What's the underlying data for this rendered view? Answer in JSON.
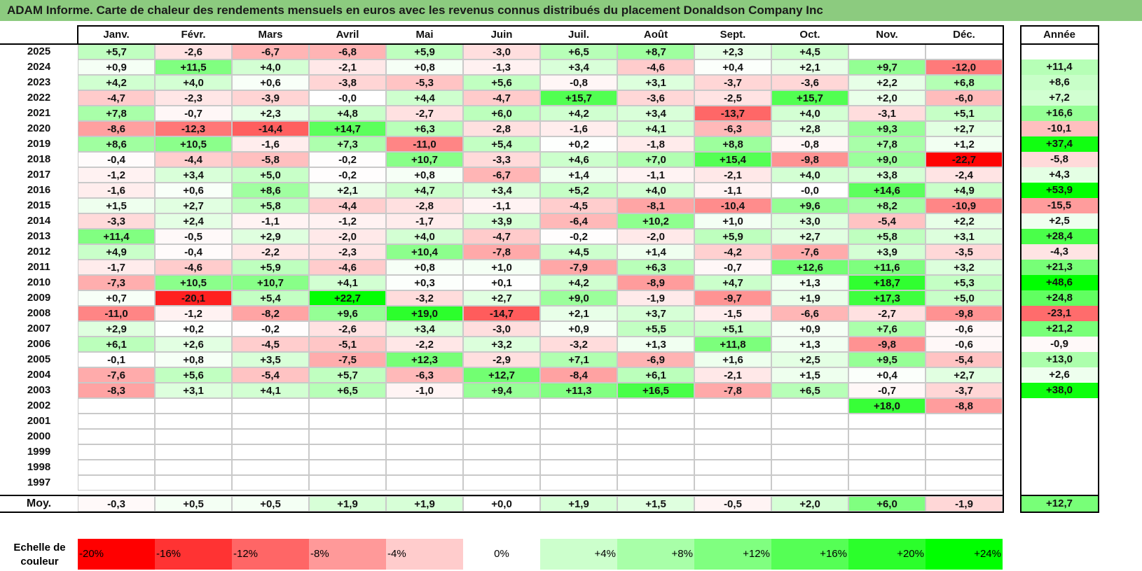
{
  "title": "ADAM Informe. Carte de chaleur des rendements mensuels en euros avec les revenus connus distribués du placement Donaldson Company Inc",
  "chart_data": {
    "type": "heatmap",
    "months": [
      "Janv.",
      "Févr.",
      "Mars",
      "Avril",
      "Mai",
      "Juin",
      "Juil.",
      "Août",
      "Sept.",
      "Oct.",
      "Nov.",
      "Déc."
    ],
    "year_header": "Année",
    "rows": [
      {
        "year": "2025",
        "values": [
          "+5,7",
          "-2,6",
          "-6,7",
          "-6,8",
          "+5,9",
          "-3,0",
          "+6,5",
          "+8,7",
          "+2,3",
          "+4,5",
          "",
          ""
        ],
        "annual": ""
      },
      {
        "year": "2024",
        "values": [
          "+0,9",
          "+11,5",
          "+4,0",
          "-2,1",
          "+0,8",
          "-1,3",
          "+3,4",
          "-4,6",
          "+0,4",
          "+2,1",
          "+9,7",
          "-12,0"
        ],
        "annual": "+11,4"
      },
      {
        "year": "2023",
        "values": [
          "+4,2",
          "+4,0",
          "+0,6",
          "-3,8",
          "-5,3",
          "+5,6",
          "-0,8",
          "+3,1",
          "-3,7",
          "-3,6",
          "+2,2",
          "+6,8"
        ],
        "annual": "+8,6"
      },
      {
        "year": "2022",
        "values": [
          "-4,7",
          "-2,3",
          "-3,9",
          "-0,0",
          "+4,4",
          "-4,7",
          "+15,7",
          "-3,6",
          "-2,5",
          "+15,7",
          "+2,0",
          "-6,0"
        ],
        "annual": "+7,2"
      },
      {
        "year": "2021",
        "values": [
          "+7,8",
          "-0,7",
          "+2,3",
          "+4,8",
          "-2,7",
          "+6,0",
          "+4,2",
          "+3,4",
          "-13,7",
          "+4,0",
          "-3,1",
          "+5,1"
        ],
        "annual": "+16,6"
      },
      {
        "year": "2020",
        "values": [
          "-8,6",
          "-12,3",
          "-14,4",
          "+14,7",
          "+6,3",
          "-2,8",
          "-1,6",
          "+4,1",
          "-6,3",
          "+2,8",
          "+9,3",
          "+2,7"
        ],
        "annual": "-10,1"
      },
      {
        "year": "2019",
        "values": [
          "+8,6",
          "+10,5",
          "-1,6",
          "+7,3",
          "-11,0",
          "+5,4",
          "+0,2",
          "-1,8",
          "+8,8",
          "-0,8",
          "+7,8",
          "+1,2"
        ],
        "annual": "+37,4"
      },
      {
        "year": "2018",
        "values": [
          "-0,4",
          "-4,4",
          "-5,8",
          "-0,2",
          "+10,7",
          "-3,3",
          "+4,6",
          "+7,0",
          "+15,4",
          "-9,8",
          "+9,0",
          "-22,7"
        ],
        "annual": "-5,8"
      },
      {
        "year": "2017",
        "values": [
          "-1,2",
          "+3,4",
          "+5,0",
          "-0,2",
          "+0,8",
          "-6,7",
          "+1,4",
          "-1,1",
          "-2,1",
          "+4,0",
          "+3,8",
          "-2,4"
        ],
        "annual": "+4,3"
      },
      {
        "year": "2016",
        "values": [
          "-1,6",
          "+0,6",
          "+8,6",
          "+2,1",
          "+4,7",
          "+3,4",
          "+5,2",
          "+4,0",
          "-1,1",
          "-0,0",
          "+14,6",
          "+4,9"
        ],
        "annual": "+53,9"
      },
      {
        "year": "2015",
        "values": [
          "+1,5",
          "+2,7",
          "+5,8",
          "-4,4",
          "-2,8",
          "-1,1",
          "-4,5",
          "-8,1",
          "-10,4",
          "+9,6",
          "+8,2",
          "-10,9"
        ],
        "annual": "-15,5"
      },
      {
        "year": "2014",
        "values": [
          "-3,3",
          "+2,4",
          "-1,1",
          "-1,2",
          "-1,7",
          "+3,9",
          "-6,4",
          "+10,2",
          "+1,0",
          "+3,0",
          "-5,4",
          "+2,2"
        ],
        "annual": "+2,5"
      },
      {
        "year": "2013",
        "values": [
          "+11,4",
          "-0,5",
          "+2,9",
          "-2,0",
          "+4,0",
          "-4,7",
          "-0,2",
          "-2,0",
          "+5,9",
          "+2,7",
          "+5,8",
          "+3,1"
        ],
        "annual": "+28,4"
      },
      {
        "year": "2012",
        "values": [
          "+4,9",
          "-0,4",
          "-2,2",
          "-2,3",
          "+10,4",
          "-7,8",
          "+4,5",
          "+1,4",
          "-4,2",
          "-7,6",
          "+3,9",
          "-3,5"
        ],
        "annual": "-4,3"
      },
      {
        "year": "2011",
        "values": [
          "-1,7",
          "-4,6",
          "+5,9",
          "-4,6",
          "+0,8",
          "+1,0",
          "-7,9",
          "+6,3",
          "-0,7",
          "+12,6",
          "+11,6",
          "+3,2"
        ],
        "annual": "+21,3"
      },
      {
        "year": "2010",
        "values": [
          "-7,3",
          "+10,5",
          "+10,7",
          "+4,1",
          "+0,3",
          "+0,1",
          "+4,2",
          "-8,9",
          "+4,7",
          "+1,3",
          "+18,7",
          "+5,3"
        ],
        "annual": "+48,6"
      },
      {
        "year": "2009",
        "values": [
          "+0,7",
          "-20,1",
          "+5,4",
          "+22,7",
          "-3,2",
          "+2,7",
          "+9,0",
          "-1,9",
          "-9,7",
          "+1,9",
          "+17,3",
          "+5,0"
        ],
        "annual": "+24,8"
      },
      {
        "year": "2008",
        "values": [
          "-11,0",
          "-1,2",
          "-8,2",
          "+9,6",
          "+19,0",
          "-14,7",
          "+2,1",
          "+3,7",
          "-1,5",
          "-6,6",
          "-2,7",
          "-9,8"
        ],
        "annual": "-23,1"
      },
      {
        "year": "2007",
        "values": [
          "+2,9",
          "+0,2",
          "-0,2",
          "-2,6",
          "+3,4",
          "-3,0",
          "+0,9",
          "+5,5",
          "+5,1",
          "+0,9",
          "+7,6",
          "-0,6"
        ],
        "annual": "+21,2"
      },
      {
        "year": "2006",
        "values": [
          "+6,1",
          "+2,6",
          "-4,5",
          "-5,1",
          "-2,2",
          "+3,2",
          "-3,2",
          "+1,3",
          "+11,8",
          "+1,3",
          "-9,8",
          "-0,6"
        ],
        "annual": "-0,9"
      },
      {
        "year": "2005",
        "values": [
          "-0,1",
          "+0,8",
          "+3,5",
          "-7,5",
          "+12,3",
          "-2,9",
          "+7,1",
          "-6,9",
          "+1,6",
          "+2,5",
          "+9,5",
          "-5,4"
        ],
        "annual": "+13,0"
      },
      {
        "year": "2004",
        "values": [
          "-7,6",
          "+5,6",
          "-5,4",
          "+5,7",
          "-6,3",
          "+12,7",
          "-8,4",
          "+6,1",
          "-2,1",
          "+1,5",
          "+0,4",
          "+2,7"
        ],
        "annual": "+2,6"
      },
      {
        "year": "2003",
        "values": [
          "-8,3",
          "+3,1",
          "+4,1",
          "+6,5",
          "-1,0",
          "+9,4",
          "+11,3",
          "+16,5",
          "-7,8",
          "+6,5",
          "-0,7",
          "-3,7"
        ],
        "annual": "+38,0"
      },
      {
        "year": "2002",
        "values": [
          "",
          "",
          "",
          "",
          "",
          "",
          "",
          "",
          "",
          "",
          "+18,0",
          "-8,8"
        ],
        "annual": ""
      },
      {
        "year": "2001",
        "values": [
          "",
          "",
          "",
          "",
          "",
          "",
          "",
          "",
          "",
          "",
          "",
          ""
        ],
        "annual": ""
      },
      {
        "year": "2000",
        "values": [
          "",
          "",
          "",
          "",
          "",
          "",
          "",
          "",
          "",
          "",
          "",
          ""
        ],
        "annual": ""
      },
      {
        "year": "1999",
        "values": [
          "",
          "",
          "",
          "",
          "",
          "",
          "",
          "",
          "",
          "",
          "",
          ""
        ],
        "annual": ""
      },
      {
        "year": "1998",
        "values": [
          "",
          "",
          "",
          "",
          "",
          "",
          "",
          "",
          "",
          "",
          "",
          ""
        ],
        "annual": ""
      },
      {
        "year": "1997",
        "values": [
          "",
          "",
          "",
          "",
          "",
          "",
          "",
          "",
          "",
          "",
          "",
          ""
        ],
        "annual": ""
      }
    ],
    "average": {
      "label": "Moy.",
      "values": [
        "-0,3",
        "+0,5",
        "+0,5",
        "+1,9",
        "+1,9",
        "+0,0",
        "+1,9",
        "+1,5",
        "-0,5",
        "+2,0",
        "+6,0",
        "-1,9"
      ],
      "annual": "+12,7"
    },
    "scale": {
      "label": "Echelle de couleur",
      "steps": [
        "-20%",
        "-16%",
        "-12%",
        "-8%",
        "-4%",
        "0%",
        "+4%",
        "+8%",
        "+12%",
        "+16%",
        "+20%",
        "+24%"
      ],
      "colors": [
        "#FF0000",
        "#FF3333",
        "#FF6666",
        "#FF9999",
        "#FFCCCC",
        "#FFFFFF",
        "#CCFFCC",
        "#A8FFA8",
        "#80FF80",
        "#55FF55",
        "#2BFF2B",
        "#00FF00"
      ]
    }
  }
}
